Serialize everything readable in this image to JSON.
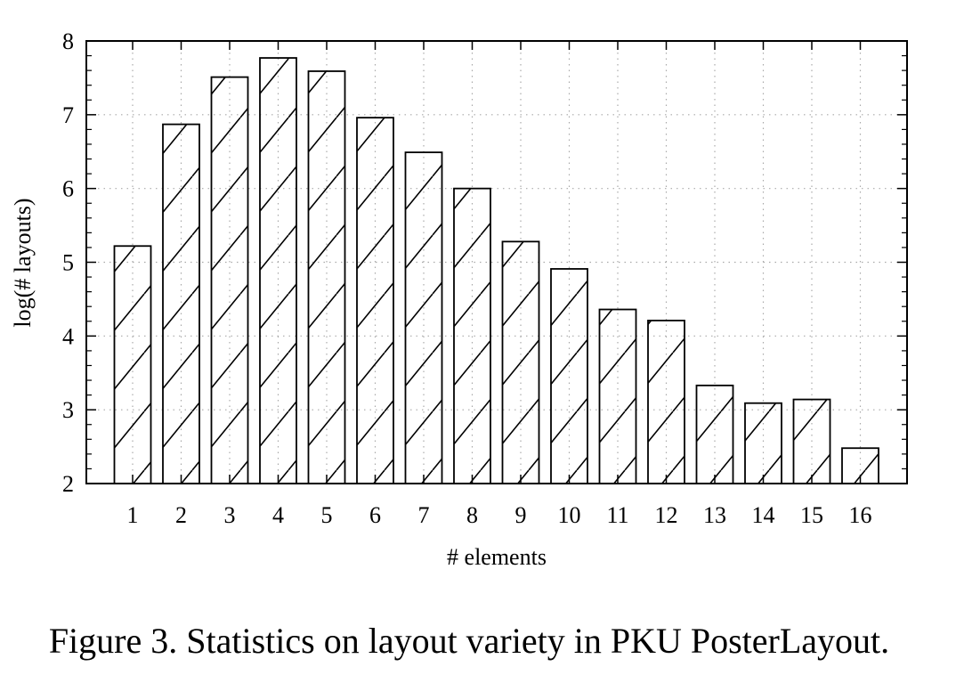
{
  "chart_data": {
    "type": "bar",
    "title": "",
    "xlabel": "# elements",
    "ylabel": "log(# layouts)",
    "categories": [
      "1",
      "2",
      "3",
      "4",
      "5",
      "6",
      "7",
      "8",
      "9",
      "10",
      "11",
      "12",
      "13",
      "14",
      "15",
      "16"
    ],
    "values": [
      5.22,
      6.87,
      7.51,
      7.77,
      7.59,
      6.96,
      6.49,
      6.0,
      5.28,
      4.91,
      4.36,
      4.21,
      3.33,
      3.09,
      3.14,
      2.48
    ],
    "ylim": [
      2,
      8
    ],
    "yticks": [
      "2",
      "3",
      "4",
      "5",
      "6",
      "7",
      "8"
    ],
    "grid": true,
    "bar_fill": "diagonal hatch",
    "colors": {
      "bar_stroke": "#000000",
      "bar_fill": "#ffffff",
      "grid": "#aaaaaa"
    }
  },
  "caption": "Figure 3. Statistics on layout variety in PKU PosterLayout."
}
